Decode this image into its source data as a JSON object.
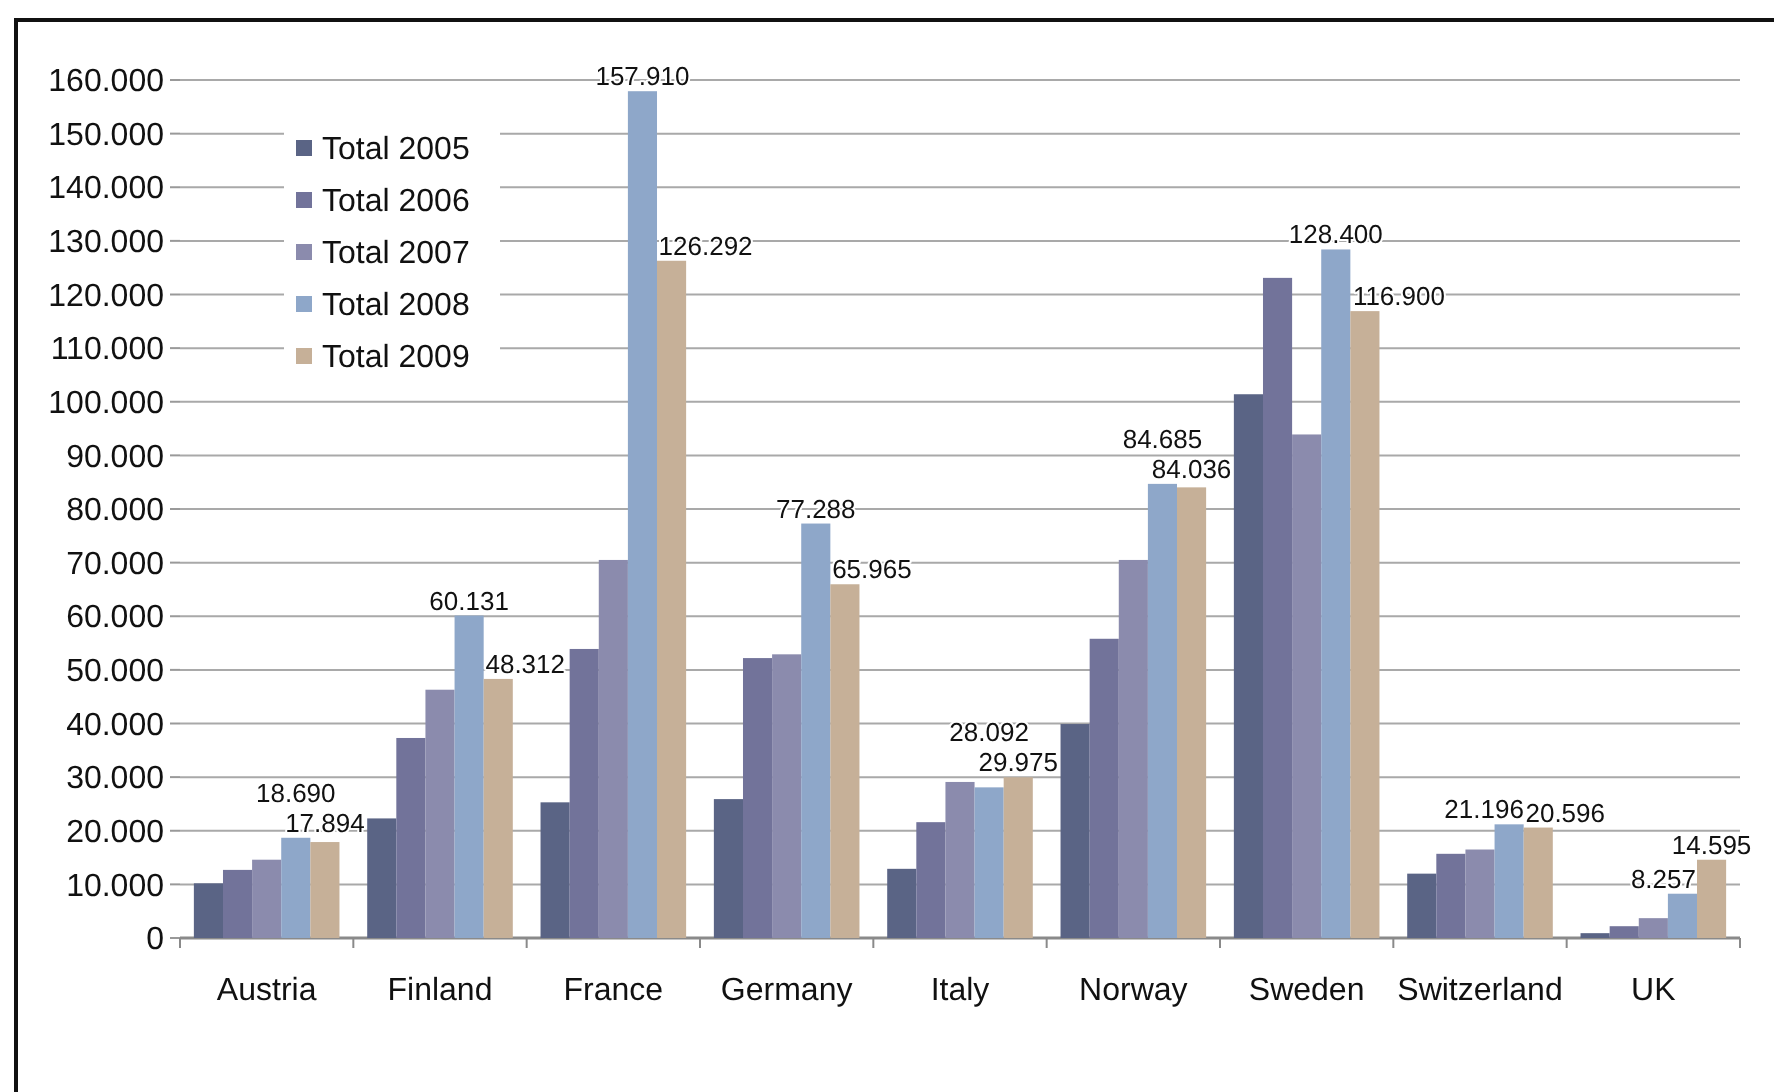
{
  "chart_data": {
    "type": "bar",
    "categories": [
      "Austria",
      "Finland",
      "France",
      "Germany",
      "Italy",
      "Norway",
      "Sweden",
      "Switzerland",
      "UK"
    ],
    "series": [
      {
        "name": "Total 2005",
        "color": "#5a6485",
        "values": [
          10200,
          22300,
          25300,
          25900,
          12900,
          39900,
          101400,
          12000,
          900
        ]
      },
      {
        "name": "Total 2006",
        "color": "#72739a",
        "values": [
          12700,
          37300,
          53900,
          52200,
          21600,
          55800,
          123100,
          15700,
          2200
        ]
      },
      {
        "name": "Total 2007",
        "color": "#8b8bad",
        "values": [
          14600,
          46300,
          70500,
          52900,
          29100,
          70500,
          93900,
          16500,
          3700
        ]
      },
      {
        "name": "Total 2008",
        "color": "#8ea7c9",
        "values": [
          18690,
          60131,
          157910,
          77288,
          28092,
          84685,
          128400,
          21196,
          8257
        ],
        "value_labels": [
          "18.690",
          "60.131",
          "157.910",
          "77.288",
          "28.092",
          "84.685",
          "128.400",
          "21.196",
          "8.257"
        ]
      },
      {
        "name": "Total 2009",
        "color": "#c6b098",
        "values": [
          17894,
          48312,
          126292,
          65965,
          29975,
          84036,
          116900,
          20596,
          14595
        ],
        "value_labels": [
          "17.894",
          "48.312",
          "126.292",
          "65.965",
          "29.975",
          "84.036",
          "116.900",
          "20.596",
          "14.595"
        ]
      }
    ],
    "ylim": [
      0,
      160000
    ],
    "yticks": [
      0,
      {
        "value": 10000,
        "label": "10.000"
      },
      {
        "value": 20000,
        "label": "20.000"
      },
      {
        "value": 30000,
        "label": "30.000"
      },
      {
        "value": 40000,
        "label": "40.000"
      },
      {
        "value": 50000,
        "label": "50.000"
      },
      {
        "value": 60000,
        "label": "60.000"
      },
      {
        "value": 70000,
        "label": "70.000"
      },
      {
        "value": 80000,
        "label": "80.000"
      },
      {
        "value": 90000,
        "label": "90.000"
      },
      {
        "value": 100000,
        "label": "100.000"
      },
      {
        "value": 110000,
        "label": "110.000"
      },
      {
        "value": 120000,
        "label": "120.000"
      },
      {
        "value": 130000,
        "label": "130.000"
      },
      {
        "value": 140000,
        "label": "140.000"
      },
      {
        "value": 150000,
        "label": "150.000"
      },
      {
        "value": 160000,
        "label": "160.000"
      }
    ],
    "grid": "y",
    "legend": "top left"
  }
}
